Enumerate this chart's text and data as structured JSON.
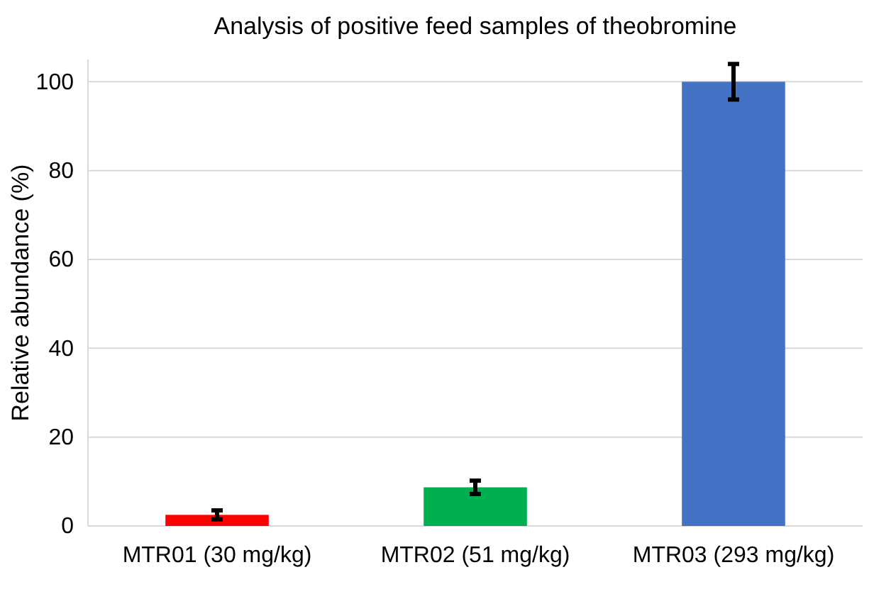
{
  "chart_data": {
    "type": "bar",
    "title": "Analysis of positive feed samples of theobromine",
    "ylabel": "Relative abundance (%)",
    "categories": [
      "MTR01 (30 mg/kg)",
      "MTR02 (51 mg/kg)",
      "MTR03 (293 mg/kg)"
    ],
    "values": [
      2.5,
      8.7,
      100
    ],
    "colors": [
      "#ff0000",
      "#00b050",
      "#4472c4"
    ],
    "errors": [
      1,
      1.5,
      4
    ],
    "ylim": [
      0,
      105
    ],
    "yticks": [
      0,
      20,
      40,
      60,
      80,
      100
    ],
    "grid": "y"
  }
}
